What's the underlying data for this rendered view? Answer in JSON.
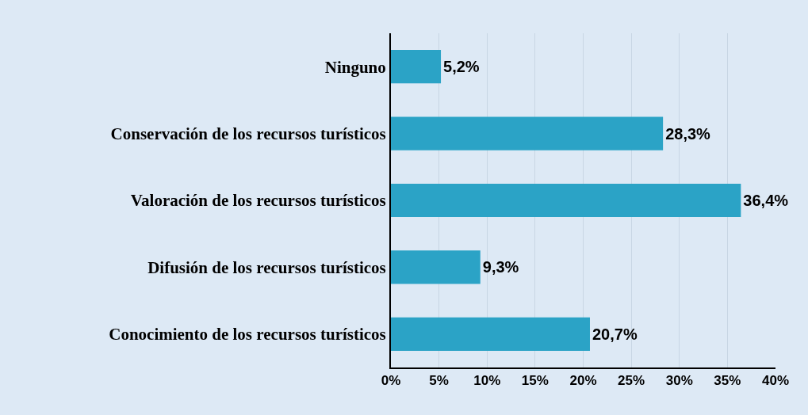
{
  "chart_data": {
    "type": "bar",
    "orientation": "horizontal",
    "categories": [
      "Ninguno",
      "Conservación de los recursos turísticos",
      "Valoración de los recursos turísticos",
      "Difusión de los recursos turísticos",
      "Conocimiento de los recursos turísticos"
    ],
    "values": [
      5.2,
      28.3,
      36.4,
      9.3,
      20.7
    ],
    "value_labels": [
      "5,2%",
      "28,3%",
      "36,4%",
      "9,3%",
      "20,7%"
    ],
    "color": "#2ba3c6",
    "xlim": [
      0,
      40
    ],
    "xticks": [
      {
        "value": 0,
        "label": "0%"
      },
      {
        "value": 5,
        "label": "5%"
      },
      {
        "value": 10,
        "label": "10%"
      },
      {
        "value": 15,
        "label": "15%"
      },
      {
        "value": 20,
        "label": "20%"
      },
      {
        "value": 25,
        "label": "25%"
      },
      {
        "value": 30,
        "label": "30%"
      },
      {
        "value": 35,
        "label": "35%"
      },
      {
        "value": 40,
        "label": "40%"
      }
    ],
    "grid": "x"
  }
}
